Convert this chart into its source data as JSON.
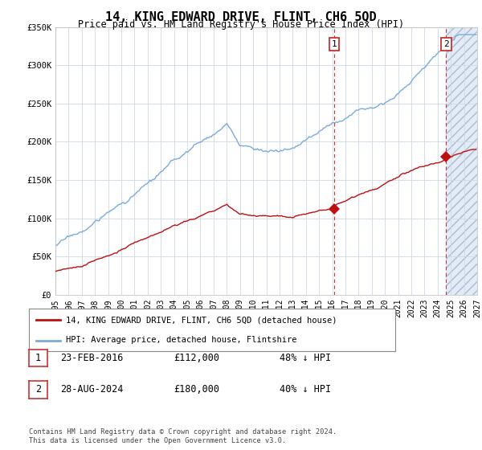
{
  "title": "14, KING EDWARD DRIVE, FLINT, CH6 5QD",
  "subtitle": "Price paid vs. HM Land Registry's House Price Index (HPI)",
  "legend_line1": "14, KING EDWARD DRIVE, FLINT, CH6 5QD (detached house)",
  "legend_line2": "HPI: Average price, detached house, Flintshire",
  "transaction1_date": "23-FEB-2016",
  "transaction1_price": "£112,000",
  "transaction1_hpi": "48% ↓ HPI",
  "transaction1_year": 2016.14,
  "transaction1_value": 112000,
  "transaction2_date": "28-AUG-2024",
  "transaction2_price": "£180,000",
  "transaction2_hpi": "40% ↓ HPI",
  "transaction2_year": 2024.65,
  "transaction2_value": 180000,
  "ylim": [
    0,
    350000
  ],
  "xlim_start": 1995,
  "xlim_end": 2027,
  "hpi_color": "#7aabdc",
  "price_color": "#bb1111",
  "background_color": "#ffffff",
  "grid_color": "#d0d8e8",
  "hatch_color": "#c8d8ee",
  "footnote": "Contains HM Land Registry data © Crown copyright and database right 2024.\nThis data is licensed under the Open Government Licence v3.0."
}
